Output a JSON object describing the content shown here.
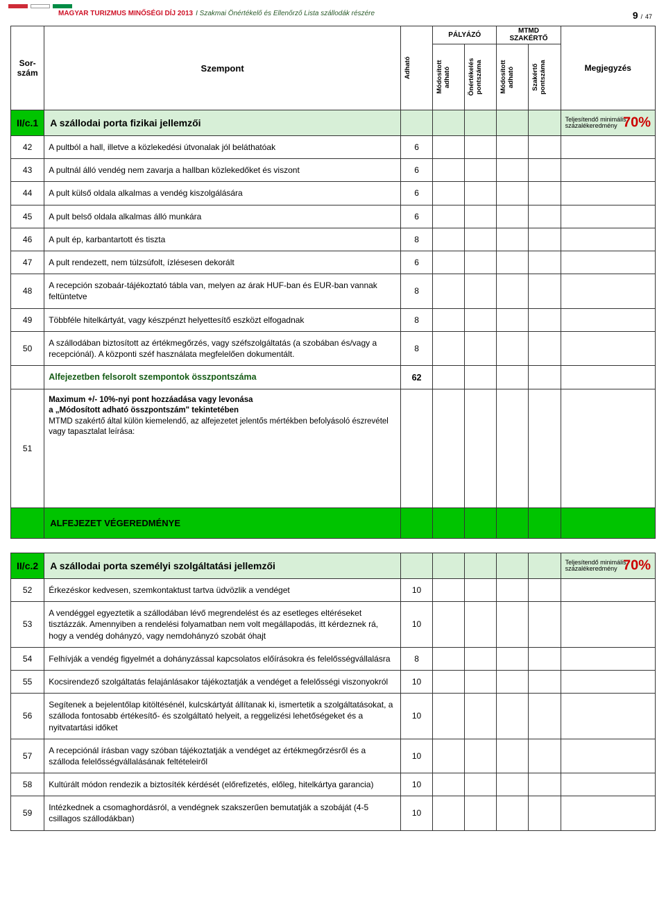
{
  "header": {
    "doc_title": "MAGYAR TURIZMUS MINŐSÉGI DÍJ 2013",
    "doc_sub": "I   Szakmai Önértékelő és Ellenőrző Lista szállodák részére",
    "page_num": "9",
    "page_sep": "/",
    "page_total": "47",
    "stripe_colors": [
      "#ce2b37",
      "#ffffff",
      "#008c45"
    ]
  },
  "table_header": {
    "sorszam": "Sor-\nszám",
    "szempont": "Szempont",
    "group_palyazo": "PÁLYÁZÓ",
    "group_mtmd": "MTMD\nSZAKÉRTŐ",
    "cols": [
      "Adható",
      "Módosított\nadható",
      "Önértékelés\npontszáma",
      "Módosított\nadható",
      "Szakértő\npontszáma"
    ],
    "megjegyzes": "Megjegyzés"
  },
  "section1": {
    "num": "II/c.1",
    "title": "A szállodai porta fizikai jellemzői",
    "min_label1": "Teljesítendő minimális",
    "min_label2": "százalékeredmény",
    "pct": "70%",
    "rows": [
      {
        "n": "42",
        "t": "A pultból a hall, illetve a közlekedési útvonalak jól beláthatóak",
        "p": "6"
      },
      {
        "n": "43",
        "t": "A pultnál álló vendég nem zavarja a hallban közlekedőket és viszont",
        "p": "6"
      },
      {
        "n": "44",
        "t": "A pult külső oldala alkalmas a vendég kiszolgálására",
        "p": "6"
      },
      {
        "n": "45",
        "t": "A pult belső oldala alkalmas álló munkára",
        "p": "6"
      },
      {
        "n": "46",
        "t": "A pult ép, karbantartott és tiszta",
        "p": "8"
      },
      {
        "n": "47",
        "t": "A pult rendezett, nem túlzsúfolt, ízlésesen dekorált",
        "p": "6"
      },
      {
        "n": "48",
        "t": "A recepción szobaár-tájékoztató tábla van, melyen az árak HUF-ban és EUR-ban vannak feltüntetve",
        "p": "8"
      },
      {
        "n": "49",
        "t": "Többféle hitelkártyát, vagy készpénzt helyettesítő eszközt elfogadnak",
        "p": "8"
      },
      {
        "n": "50",
        "t": "A szállodában biztosított az értékmegőrzés, vagy széfszolgáltatás (a szobában és/vagy a recepciónál). A központi széf használata megfelelően dokumentált.",
        "p": "8"
      }
    ],
    "total_label": "Alfejezetben felsorolt szempontok összpontszáma",
    "total_value": "62",
    "max_n": "51",
    "max_bold1": "Maximum +/- 10%-nyi pont hozzáadása vagy levonása",
    "max_bold2": "a „Módosított adható összpontszám\" tekintetében",
    "max_text": "MTMD szakértő által külön kiemelendő, az alfejezetet jelentős mértékben befolyásoló észrevétel vagy tapasztalat leírása:",
    "result_label": "ALFEJEZET VÉGEREDMÉNYE"
  },
  "section2": {
    "num": "II/c.2",
    "title": "A szállodai porta személyi szolgáltatási jellemzői",
    "min_label1": "Teljesítendő minimális",
    "min_label2": "százalékeredmény",
    "pct": "70%",
    "rows": [
      {
        "n": "52",
        "t": "Érkezéskor kedvesen, szemkontaktust tartva üdvözlik a vendéget",
        "p": "10"
      },
      {
        "n": "53",
        "t": "A vendéggel egyeztetik a szállodában lévő megrendelést és az esetleges eltéréseket tisztázzák. Amennyiben a rendelési folyamatban nem volt megállapodás, itt kérdeznek rá, hogy a vendég dohányzó, vagy nemdohányzó szobát óhajt",
        "p": "10"
      },
      {
        "n": "54",
        "t": "Felhívják a vendég figyelmét a dohányzással kapcsolatos előírásokra és felelősségvállalásra",
        "p": "8"
      },
      {
        "n": "55",
        "t": "Kocsirendező szolgáltatás felajánlásakor tájékoztatják a vendéget a felelősségi viszonyokról",
        "p": "10"
      },
      {
        "n": "56",
        "t": "Segítenek a bejelentőlap kitöltésénél, kulcskártyát állítanak ki, ismertetik a szolgáltatásokat, a szálloda fontosabb értékesítő- és szolgáltató helyeit, a reggelizési lehetőségeket és a nyitvatartási időket",
        "p": "10"
      },
      {
        "n": "57",
        "t": "A recepciónál írásban vagy szóban tájékoztatják a vendéget az értékmegőrzésről és a szálloda felelősségvállalásának feltételeiről",
        "p": "10"
      },
      {
        "n": "58",
        "t": "Kultúrált módon rendezik a biztosíték kérdését (előrefizetés, előleg, hitelkártya garancia)",
        "p": "10"
      },
      {
        "n": "59",
        "t": "Intézkednek a csomaghordásról, a vendégnek szakszerűen bemutatják a szobáját (4-5 csillagos szállodákban)",
        "p": "10"
      }
    ]
  },
  "colors": {
    "section_num_bg": "#00c400",
    "section_bg": "#d7efd7",
    "total_text": "#155b15",
    "pct_color": "#c00000",
    "border": "#333333"
  }
}
